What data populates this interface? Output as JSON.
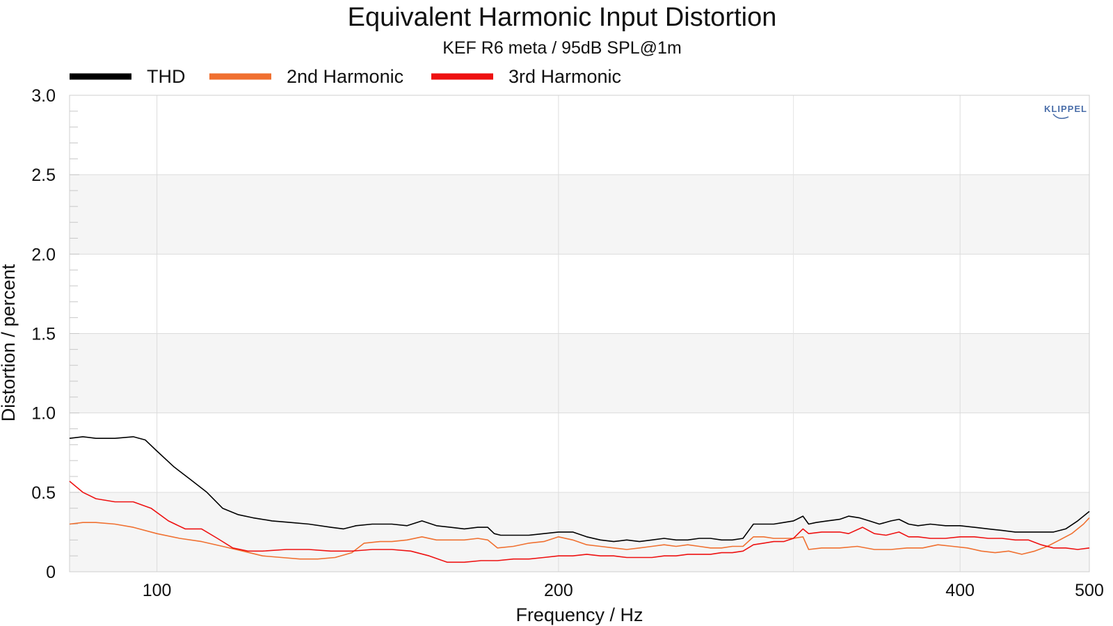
{
  "chart_data": {
    "type": "line",
    "title": "Equivalent Harmonic Input Distortion",
    "subtitle": "KEF R6 meta / 95dB SPL@1m",
    "xlabel": "Frequency / Hz",
    "ylabel": "Distortion / percent",
    "x_scale": "log",
    "xlim": [
      86,
      500
    ],
    "ylim": [
      0,
      3
    ],
    "x_ticks": [
      100,
      200,
      400,
      500
    ],
    "x_tick_labels": [
      "100",
      "200",
      "400",
      "500"
    ],
    "y_ticks": [
      0,
      0.5,
      1.0,
      1.5,
      2.0,
      2.5,
      3.0
    ],
    "y_tick_labels": [
      "0",
      "0.5",
      "1.0",
      "1.5",
      "2.0",
      "2.5",
      "3.0"
    ],
    "grid": true,
    "legend_position": "top-left",
    "logo_text": "KLIPPEL",
    "series": [
      {
        "name": "THD",
        "color": "#000000",
        "points": [
          [
            86,
            0.84
          ],
          [
            88,
            0.85
          ],
          [
            90,
            0.84
          ],
          [
            93,
            0.84
          ],
          [
            96,
            0.85
          ],
          [
            98,
            0.83
          ],
          [
            100,
            0.76
          ],
          [
            103,
            0.66
          ],
          [
            106,
            0.58
          ],
          [
            109,
            0.5
          ],
          [
            112,
            0.4
          ],
          [
            115,
            0.36
          ],
          [
            118,
            0.34
          ],
          [
            122,
            0.32
          ],
          [
            126,
            0.31
          ],
          [
            130,
            0.3
          ],
          [
            135,
            0.28
          ],
          [
            138,
            0.27
          ],
          [
            141,
            0.29
          ],
          [
            145,
            0.3
          ],
          [
            150,
            0.3
          ],
          [
            154,
            0.29
          ],
          [
            158,
            0.32
          ],
          [
            162,
            0.29
          ],
          [
            166,
            0.28
          ],
          [
            170,
            0.27
          ],
          [
            174,
            0.28
          ],
          [
            177,
            0.28
          ],
          [
            179,
            0.24
          ],
          [
            181,
            0.23
          ],
          [
            185,
            0.23
          ],
          [
            190,
            0.23
          ],
          [
            195,
            0.24
          ],
          [
            200,
            0.25
          ],
          [
            205,
            0.25
          ],
          [
            210,
            0.22
          ],
          [
            215,
            0.2
          ],
          [
            220,
            0.19
          ],
          [
            225,
            0.2
          ],
          [
            230,
            0.19
          ],
          [
            235,
            0.2
          ],
          [
            240,
            0.21
          ],
          [
            245,
            0.2
          ],
          [
            250,
            0.2
          ],
          [
            255,
            0.21
          ],
          [
            260,
            0.21
          ],
          [
            265,
            0.2
          ],
          [
            270,
            0.2
          ],
          [
            275,
            0.21
          ],
          [
            280,
            0.3
          ],
          [
            285,
            0.3
          ],
          [
            290,
            0.3
          ],
          [
            295,
            0.31
          ],
          [
            300,
            0.32
          ],
          [
            305,
            0.35
          ],
          [
            308,
            0.3
          ],
          [
            312,
            0.31
          ],
          [
            318,
            0.32
          ],
          [
            325,
            0.33
          ],
          [
            330,
            0.35
          ],
          [
            336,
            0.34
          ],
          [
            342,
            0.32
          ],
          [
            348,
            0.3
          ],
          [
            355,
            0.32
          ],
          [
            360,
            0.33
          ],
          [
            366,
            0.3
          ],
          [
            372,
            0.29
          ],
          [
            380,
            0.3
          ],
          [
            390,
            0.29
          ],
          [
            400,
            0.29
          ],
          [
            410,
            0.28
          ],
          [
            420,
            0.27
          ],
          [
            430,
            0.26
          ],
          [
            440,
            0.25
          ],
          [
            450,
            0.25
          ],
          [
            460,
            0.25
          ],
          [
            470,
            0.25
          ],
          [
            480,
            0.27
          ],
          [
            490,
            0.32
          ],
          [
            500,
            0.38
          ]
        ]
      },
      {
        "name": "2nd Harmonic",
        "color": "#f07030",
        "points": [
          [
            86,
            0.3
          ],
          [
            88,
            0.31
          ],
          [
            90,
            0.31
          ],
          [
            93,
            0.3
          ],
          [
            96,
            0.28
          ],
          [
            100,
            0.24
          ],
          [
            104,
            0.21
          ],
          [
            108,
            0.19
          ],
          [
            112,
            0.16
          ],
          [
            116,
            0.13
          ],
          [
            120,
            0.1
          ],
          [
            124,
            0.09
          ],
          [
            128,
            0.08
          ],
          [
            132,
            0.08
          ],
          [
            136,
            0.09
          ],
          [
            140,
            0.12
          ],
          [
            143,
            0.18
          ],
          [
            147,
            0.19
          ],
          [
            150,
            0.19
          ],
          [
            154,
            0.2
          ],
          [
            158,
            0.22
          ],
          [
            162,
            0.2
          ],
          [
            166,
            0.2
          ],
          [
            170,
            0.2
          ],
          [
            174,
            0.21
          ],
          [
            177,
            0.2
          ],
          [
            180,
            0.15
          ],
          [
            185,
            0.16
          ],
          [
            190,
            0.18
          ],
          [
            195,
            0.19
          ],
          [
            200,
            0.22
          ],
          [
            205,
            0.2
          ],
          [
            210,
            0.17
          ],
          [
            215,
            0.16
          ],
          [
            220,
            0.15
          ],
          [
            225,
            0.14
          ],
          [
            230,
            0.15
          ],
          [
            235,
            0.16
          ],
          [
            240,
            0.17
          ],
          [
            245,
            0.16
          ],
          [
            250,
            0.17
          ],
          [
            255,
            0.16
          ],
          [
            260,
            0.15
          ],
          [
            265,
            0.15
          ],
          [
            270,
            0.16
          ],
          [
            275,
            0.16
          ],
          [
            280,
            0.22
          ],
          [
            285,
            0.22
          ],
          [
            290,
            0.21
          ],
          [
            295,
            0.21
          ],
          [
            300,
            0.21
          ],
          [
            305,
            0.22
          ],
          [
            308,
            0.14
          ],
          [
            315,
            0.15
          ],
          [
            325,
            0.15
          ],
          [
            335,
            0.16
          ],
          [
            345,
            0.14
          ],
          [
            355,
            0.14
          ],
          [
            365,
            0.15
          ],
          [
            375,
            0.15
          ],
          [
            385,
            0.17
          ],
          [
            395,
            0.16
          ],
          [
            405,
            0.15
          ],
          [
            415,
            0.13
          ],
          [
            425,
            0.12
          ],
          [
            435,
            0.13
          ],
          [
            445,
            0.11
          ],
          [
            455,
            0.13
          ],
          [
            465,
            0.16
          ],
          [
            475,
            0.2
          ],
          [
            485,
            0.24
          ],
          [
            495,
            0.3
          ],
          [
            500,
            0.34
          ]
        ]
      },
      {
        "name": "3rd Harmonic",
        "color": "#ee1111",
        "points": [
          [
            86,
            0.57
          ],
          [
            88,
            0.5
          ],
          [
            90,
            0.46
          ],
          [
            93,
            0.44
          ],
          [
            96,
            0.44
          ],
          [
            99,
            0.4
          ],
          [
            102,
            0.32
          ],
          [
            105,
            0.27
          ],
          [
            108,
            0.27
          ],
          [
            111,
            0.21
          ],
          [
            114,
            0.15
          ],
          [
            117,
            0.13
          ],
          [
            120,
            0.13
          ],
          [
            125,
            0.14
          ],
          [
            130,
            0.14
          ],
          [
            135,
            0.13
          ],
          [
            140,
            0.13
          ],
          [
            145,
            0.14
          ],
          [
            150,
            0.14
          ],
          [
            155,
            0.13
          ],
          [
            160,
            0.1
          ],
          [
            165,
            0.06
          ],
          [
            170,
            0.06
          ],
          [
            175,
            0.07
          ],
          [
            180,
            0.07
          ],
          [
            185,
            0.08
          ],
          [
            190,
            0.08
          ],
          [
            195,
            0.09
          ],
          [
            200,
            0.1
          ],
          [
            205,
            0.1
          ],
          [
            210,
            0.11
          ],
          [
            215,
            0.1
          ],
          [
            220,
            0.1
          ],
          [
            225,
            0.09
          ],
          [
            230,
            0.09
          ],
          [
            235,
            0.09
          ],
          [
            240,
            0.1
          ],
          [
            245,
            0.1
          ],
          [
            250,
            0.11
          ],
          [
            255,
            0.11
          ],
          [
            260,
            0.11
          ],
          [
            265,
            0.12
          ],
          [
            270,
            0.12
          ],
          [
            275,
            0.13
          ],
          [
            280,
            0.17
          ],
          [
            285,
            0.18
          ],
          [
            290,
            0.19
          ],
          [
            295,
            0.19
          ],
          [
            300,
            0.21
          ],
          [
            305,
            0.27
          ],
          [
            308,
            0.24
          ],
          [
            315,
            0.25
          ],
          [
            325,
            0.25
          ],
          [
            330,
            0.24
          ],
          [
            338,
            0.28
          ],
          [
            345,
            0.24
          ],
          [
            352,
            0.23
          ],
          [
            360,
            0.25
          ],
          [
            366,
            0.22
          ],
          [
            372,
            0.22
          ],
          [
            380,
            0.21
          ],
          [
            390,
            0.21
          ],
          [
            400,
            0.22
          ],
          [
            410,
            0.22
          ],
          [
            420,
            0.21
          ],
          [
            430,
            0.21
          ],
          [
            440,
            0.2
          ],
          [
            450,
            0.2
          ],
          [
            460,
            0.17
          ],
          [
            470,
            0.15
          ],
          [
            480,
            0.15
          ],
          [
            490,
            0.14
          ],
          [
            500,
            0.15
          ]
        ]
      }
    ]
  }
}
